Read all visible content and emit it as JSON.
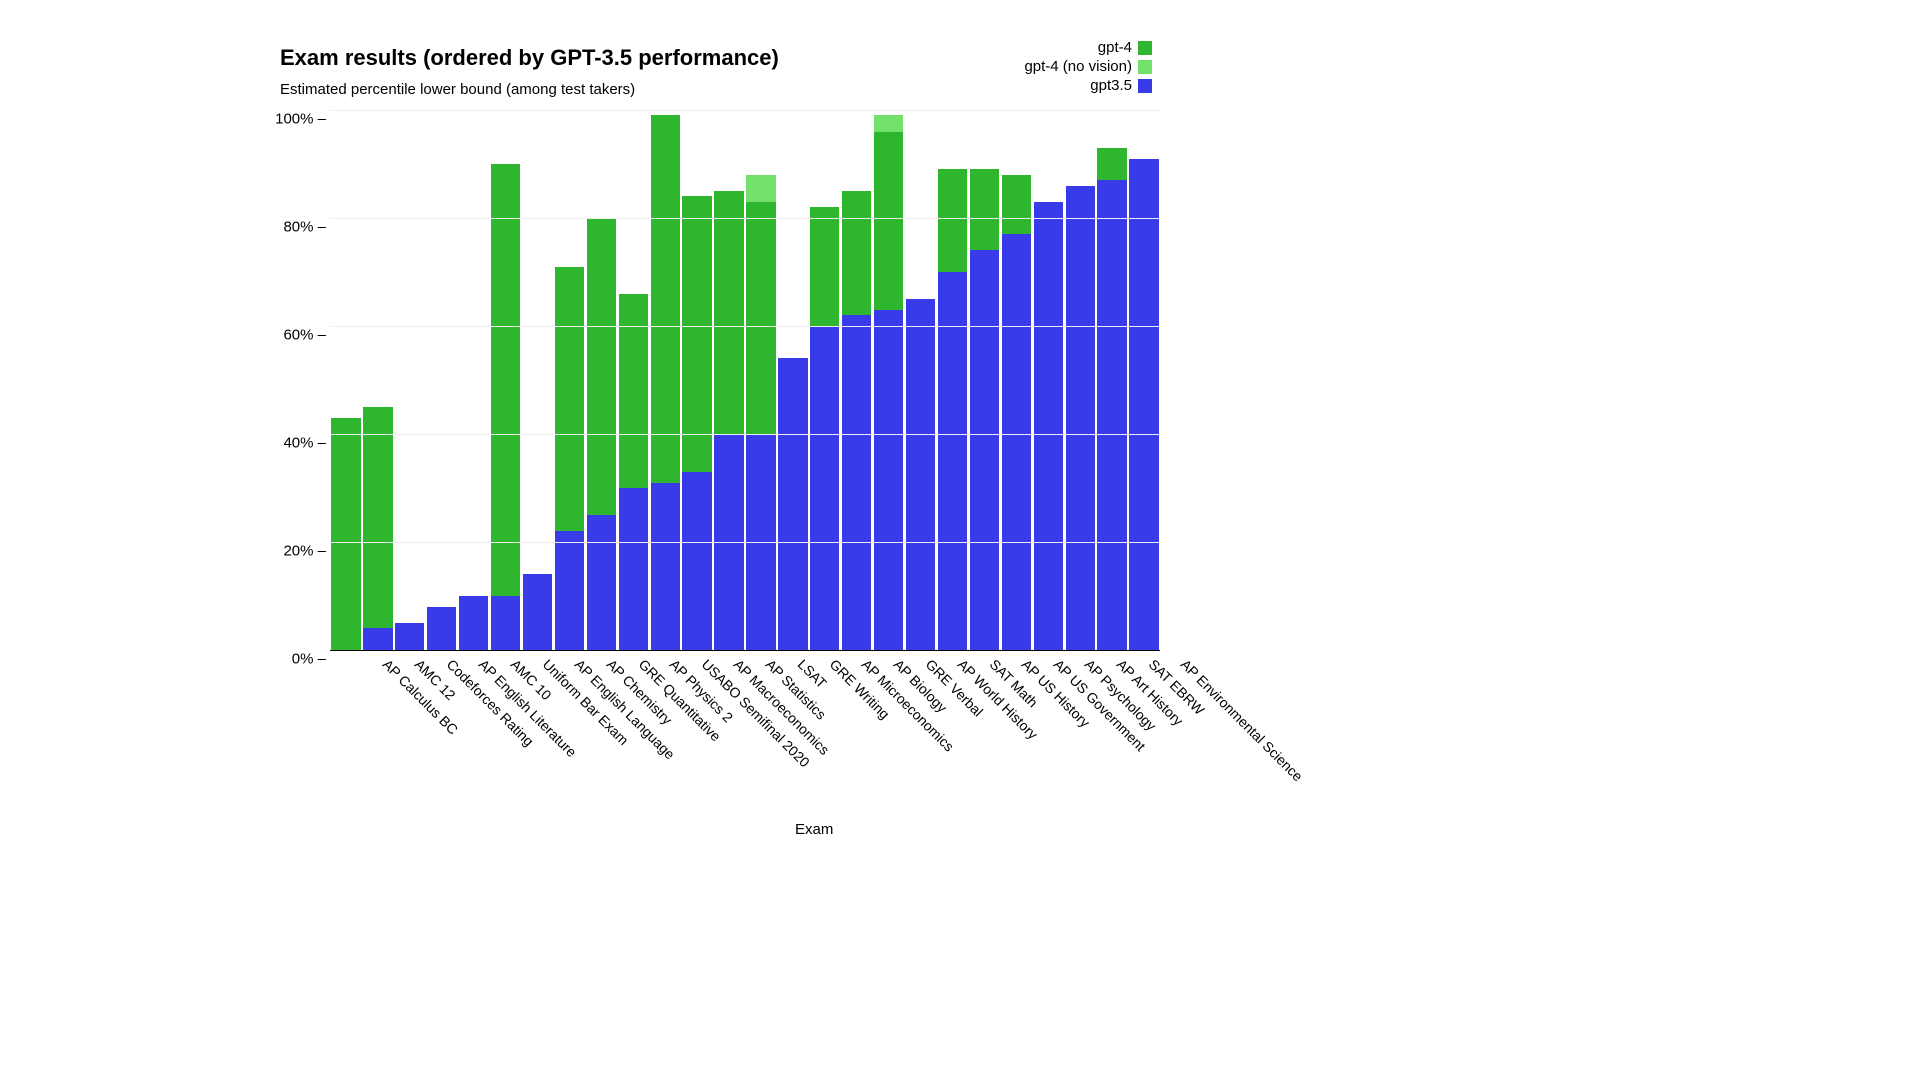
{
  "chart": {
    "type": "bar",
    "title": "Exam results (ordered by GPT-3.5 performance)",
    "subtitle": "Estimated percentile lower bound (among test takers)",
    "x_axis_title": "Exam",
    "background_color": "#ffffff",
    "grid_color": "#eeeeee",
    "axis_color": "#000000",
    "text_color": "#000000",
    "title_fontsize": 22,
    "subtitle_fontsize": 15,
    "tick_fontsize": 15,
    "xlabel_fontsize": 14,
    "ylim": [
      0,
      100
    ],
    "ytick_step": 20,
    "ytick_suffix": "%",
    "ytick_dash": " –",
    "bar_width_ratio": 0.92,
    "series_order": [
      "gpt4_no_vision",
      "gpt4",
      "gpt35"
    ],
    "series": {
      "gpt4": {
        "label": "gpt-4",
        "color": "#2fb62f"
      },
      "gpt4_no_vision": {
        "label": "gpt-4 (no vision)",
        "color": "#73e06b"
      },
      "gpt35": {
        "label": "gpt3.5",
        "color": "#3a3be8"
      }
    },
    "legend_order": [
      "gpt4",
      "gpt4_no_vision",
      "gpt35"
    ],
    "categories": [
      "AP Calculus BC",
      "AMC 12",
      "Codeforces Rating",
      "AP English Literature",
      "AMC 10",
      "Uniform Bar Exam",
      "AP English Language",
      "AP Chemistry",
      "GRE Quantitative",
      "AP Physics 2",
      "USABO Semifinal 2020",
      "AP Macroeconomics",
      "AP Statistics",
      "LSAT",
      "GRE Writing",
      "AP Microeconomics",
      "AP Biology",
      "GRE Verbal",
      "AP World History",
      "SAT Math",
      "AP US History",
      "AP US Government",
      "AP Psychology",
      "AP Art History",
      "SAT EBRW",
      "AP Environmental Science"
    ],
    "values": {
      "gpt35": [
        0,
        4,
        5,
        8,
        10,
        10,
        14,
        22,
        25,
        30,
        31,
        33,
        40,
        40,
        54,
        60,
        62,
        63,
        65,
        70,
        74,
        77,
        83,
        86,
        87,
        91
      ],
      "gpt4_no_vision": [
        43,
        45,
        5,
        8,
        10,
        90,
        14,
        71,
        80,
        66,
        99,
        84,
        85,
        88,
        54,
        82,
        85,
        99,
        65,
        89,
        89,
        88,
        83,
        86,
        93,
        91
      ],
      "gpt4": [
        43,
        45,
        5,
        8,
        10,
        90,
        14,
        71,
        80,
        66,
        99,
        84,
        85,
        83,
        54,
        82,
        85,
        96,
        65,
        89,
        89,
        88,
        83,
        86,
        93,
        91
      ]
    }
  }
}
